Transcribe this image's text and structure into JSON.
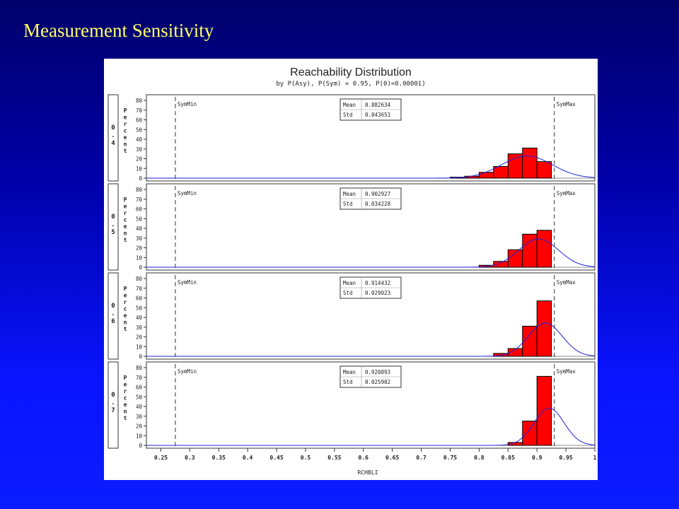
{
  "slide": {
    "title": "Measurement Sensitivity"
  },
  "colors": {
    "bar": "#ff0000",
    "curve": "#2222dd",
    "background_top": "#00006a",
    "background_bottom": "#0b1cff",
    "title": "#ffff66"
  },
  "chart_data": {
    "type": "bar",
    "title": "Reachability Distribution",
    "subtitle": "by P(Asy), P(Sym) = 0.95, P(0)=0.00001)",
    "xlabel": "RCHBLI",
    "ylabel": "Percent",
    "xlim": [
      0.225,
      1.0
    ],
    "ylim": [
      0,
      80
    ],
    "x_ticks": [
      "0.25",
      "0.3",
      "0.35",
      "0.4",
      "0.45",
      "0.5",
      "0.55",
      "0.6",
      "0.65",
      "0.7",
      "0.75",
      "0.8",
      "0.85",
      "0.9",
      "0.95",
      "1"
    ],
    "y_ticks": [
      "0",
      "10",
      "20",
      "30",
      "40",
      "50",
      "60",
      "70",
      "80"
    ],
    "bin_width": 0.025,
    "reference_lines": [
      {
        "label": "SymMin",
        "x": 0.275
      },
      {
        "label": "SymMax",
        "x": 0.93
      }
    ],
    "panels": [
      {
        "label": "0.4",
        "stats": [
          {
            "name": "Mean",
            "value": "0.882634"
          },
          {
            "name": "Std",
            "value": "0.043651"
          }
        ],
        "mean": 0.882634,
        "std": 0.043651,
        "bins": [
          0.7625,
          0.7875,
          0.8125,
          0.8375,
          0.8625,
          0.8875,
          0.9125
        ],
        "values": [
          1,
          2,
          6,
          12,
          25,
          31,
          17
        ]
      },
      {
        "label": "0.5",
        "stats": [
          {
            "name": "Mean",
            "value": "0.902927"
          },
          {
            "name": "Std",
            "value": "0.034228"
          }
        ],
        "mean": 0.902927,
        "std": 0.034228,
        "bins": [
          0.8125,
          0.8375,
          0.8625,
          0.8875,
          0.9125
        ],
        "values": [
          2,
          6,
          18,
          34,
          38
        ]
      },
      {
        "label": "0.6",
        "stats": [
          {
            "name": "Mean",
            "value": "0.914432"
          },
          {
            "name": "Std",
            "value": "0.029023"
          }
        ],
        "mean": 0.914432,
        "std": 0.029023,
        "bins": [
          0.8375,
          0.8625,
          0.8875,
          0.9125
        ],
        "values": [
          3,
          8,
          31,
          57
        ]
      },
      {
        "label": "0.7",
        "stats": [
          {
            "name": "Mean",
            "value": "0.920893"
          },
          {
            "name": "Std",
            "value": "0.025902"
          }
        ],
        "mean": 0.920893,
        "std": 0.025902,
        "bins": [
          0.8625,
          0.8875,
          0.9125
        ],
        "values": [
          3,
          25,
          71
        ]
      }
    ]
  }
}
